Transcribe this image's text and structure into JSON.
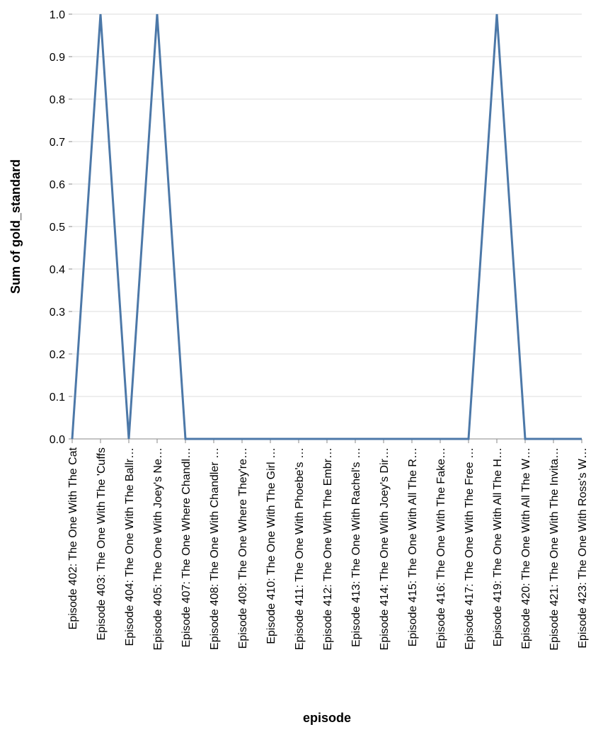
{
  "chart_data": {
    "type": "line",
    "xlabel": "episode",
    "ylabel": "Sum of gold_standard",
    "ylim": [
      0,
      1
    ],
    "y_ticks": [
      "0.0",
      "0.1",
      "0.2",
      "0.3",
      "0.4",
      "0.5",
      "0.6",
      "0.7",
      "0.8",
      "0.9",
      "1.0"
    ],
    "grid": true,
    "line_color": "#4c78a8",
    "categories": [
      "Episode 402: The One With The Cat",
      "Episode 403: The One With The 'Cuffs",
      "Episode 404: The One With The Ballr…",
      "Episode 405: The One With Joey's Ne…",
      "Episode 407: The One Where Chandl…",
      "Episode 408: The One With Chandler …",
      "Episode 409: The One Where They're…",
      "Episode 410: The One With The Girl …",
      "Episode 411: The One With Phoebe's …",
      "Episode 412: The One With The Embr…",
      "Episode 413: The One With Rachel's …",
      "Episode 414: The One With Joey's Dir…",
      "Episode 415: The One With All The R…",
      "Episode 416: The One With The Fake…",
      "Episode 417: The One With The Free …",
      "Episode 419: The One With All The H…",
      "Episode 420: The One With All The W…",
      "Episode 421: The One With The Invita…",
      "Episode 423: The One With Ross's W…"
    ],
    "values": [
      0,
      1,
      0,
      1,
      0,
      0,
      0,
      0,
      0,
      0,
      0,
      0,
      0,
      0,
      0,
      1,
      0,
      0,
      0
    ]
  }
}
